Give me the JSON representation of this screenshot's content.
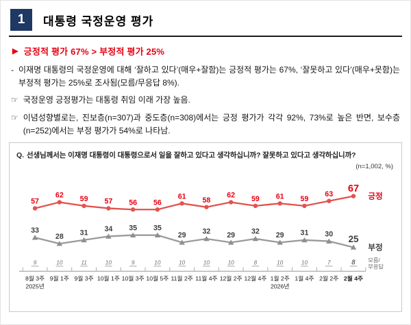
{
  "page": {
    "section_number": "1",
    "title": "대통령 국정운영 평가"
  },
  "summary": {
    "arrow": "▶",
    "text": "긍정적 평가 67% > 부정적 평가 25%"
  },
  "paragraphs": [
    {
      "bullet": "-",
      "text": "이재명 대통령의 국정운영에 대해 ‘잘하고 있다’(매우+잘함)는 긍정적 평가는 67%, ‘잘못하고 있다’(매우+못함)는 부정적 평가는 25%로 조사됨(모름/무응답 8%)."
    },
    {
      "bullet": "☞",
      "text": "국정운영 긍정평가는 대통령 취임 이래 가장 높음."
    },
    {
      "bullet": "☞",
      "text": "이념성향별로는, 진보층(n=307)과 중도층(n=308)에서는 긍정 평가가 각각 92%, 73%로 높은 반면, 보수층(n=252)에서는 부정 평가가 54%로 나타남."
    }
  ],
  "chart_box": {
    "question_prefix": "Q.",
    "question": "선생님께서는 이재명 대통령이 대통령으로서 일을 잘하고 있다고 생각하십니까? 잘못하고 있다고 생각하십니까?",
    "sample_note": "(n=1,002, %)"
  },
  "chart_data": {
    "type": "line",
    "categories": [
      "8월 3주",
      "9월 1주",
      "9월 3주",
      "10월 1주",
      "10월 3주",
      "10월 5주",
      "11월 2주",
      "11월 4주",
      "12월 2주",
      "12월 4주",
      "1월 2주",
      "1월 4주",
      "2월 2주",
      "2월 4주"
    ],
    "category_sublabels": {
      "0": "2025년",
      "10": "2026년"
    },
    "series": [
      {
        "name": "긍정",
        "values": [
          57,
          62,
          59,
          57,
          56,
          56,
          61,
          58,
          62,
          59,
          61,
          59,
          63,
          67
        ],
        "line_color": "#e2534e",
        "label_color": "#e60012"
      },
      {
        "name": "부정",
        "values": [
          33,
          28,
          31,
          34,
          35,
          35,
          29,
          32,
          29,
          32,
          29,
          31,
          30,
          25
        ],
        "line_color": "#9a9a9a",
        "label_color": "#3d3d3d"
      },
      {
        "name": "모름/무응답",
        "values": [
          9,
          10,
          11,
          10,
          9,
          10,
          10,
          10,
          10,
          8,
          10,
          10,
          7,
          8
        ],
        "label_color": "#6e6e6e"
      }
    ],
    "ylim": [
      0,
      100
    ],
    "unit": "%",
    "grid": false,
    "legend_position": "right"
  },
  "colors": {
    "badge_navy": "#1f3864",
    "accent_red": "#e60012",
    "negative_gray": "#9a9a9a",
    "box_border": "#c9c9c9"
  }
}
